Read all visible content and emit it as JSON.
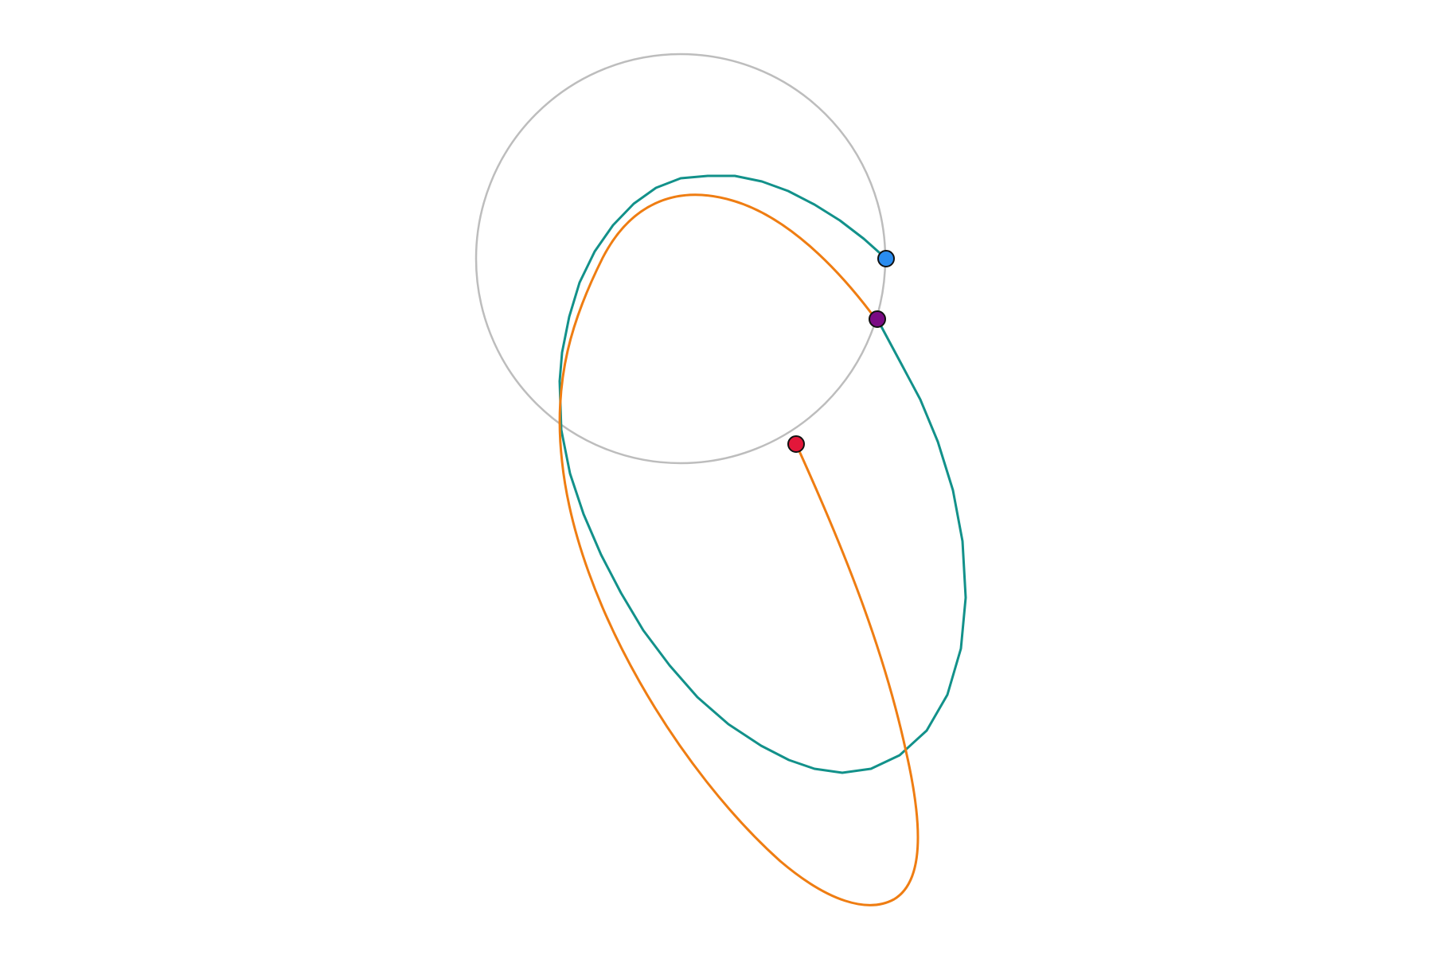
{
  "diagram": {
    "colors": {
      "background": "#ffffff",
      "reference_circle": "#bdbdbd",
      "teal_curve": "#12918a",
      "orange_curve": "#ef7d12",
      "blue_point": "#2a8cf0",
      "purple_point": "#7a0a84",
      "red_point": "#e2173a",
      "point_outline": "#111111"
    },
    "elements": [
      {
        "id": "reference-circle",
        "kind": "circle",
        "color": "reference_circle"
      },
      {
        "id": "teal-curve",
        "kind": "polyline",
        "color": "teal_curve"
      },
      {
        "id": "orange-curve",
        "kind": "smooth-curve",
        "color": "orange_curve"
      },
      {
        "id": "blue-point",
        "kind": "point",
        "color": "blue_point"
      },
      {
        "id": "purple-point",
        "kind": "point",
        "color": "purple_point"
      },
      {
        "id": "red-point",
        "kind": "point",
        "color": "red_point"
      }
    ]
  }
}
